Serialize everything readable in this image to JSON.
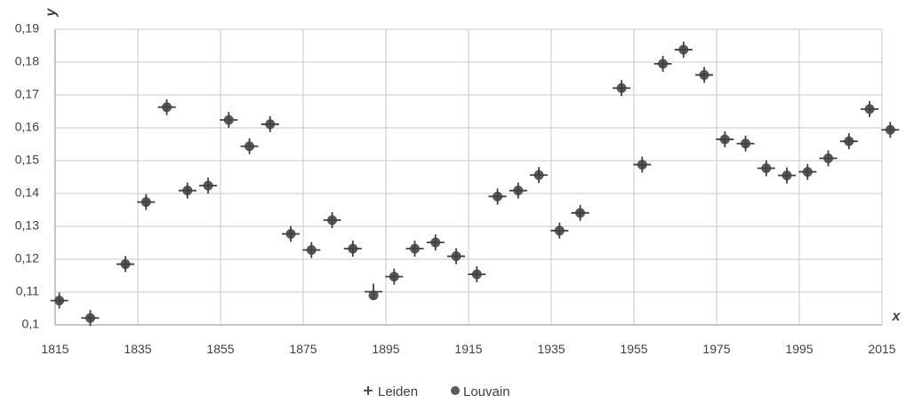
{
  "chart_data": {
    "type": "scatter",
    "xlabel": "x",
    "ylabel": "y",
    "xlim": [
      1815,
      2015
    ],
    "ylim": [
      0.1,
      0.19
    ],
    "x_ticks": [
      "1815",
      "1835",
      "1855",
      "1875",
      "1895",
      "1915",
      "1935",
      "1955",
      "1975",
      "1995",
      "2015"
    ],
    "y_ticks": [
      "0,1",
      "0,11",
      "0,12",
      "0,13",
      "0,14",
      "0,15",
      "0,16",
      "0,17",
      "0,18",
      "0,19"
    ],
    "grid": true,
    "legend_position": "bottom",
    "series": [
      {
        "name": "Leiden",
        "marker": "plus",
        "color": "#404040",
        "points": [
          [
            1816,
            0.1074
          ],
          [
            1823.5,
            0.1021
          ],
          [
            1832,
            0.1185
          ],
          [
            1837,
            0.1374
          ],
          [
            1842,
            0.1663
          ],
          [
            1847,
            0.1409
          ],
          [
            1852,
            0.1424
          ],
          [
            1857,
            0.1624
          ],
          [
            1862,
            0.1544
          ],
          [
            1867,
            0.1611
          ],
          [
            1872,
            0.1277
          ],
          [
            1877,
            0.1228
          ],
          [
            1882,
            0.1319
          ],
          [
            1887,
            0.1232
          ],
          [
            1892,
            0.1101
          ],
          [
            1897,
            0.1147
          ],
          [
            1902,
            0.1232
          ],
          [
            1907,
            0.1251
          ],
          [
            1912,
            0.1209
          ],
          [
            1917,
            0.1154
          ],
          [
            1922,
            0.1391
          ],
          [
            1927,
            0.1409
          ],
          [
            1932,
            0.1456
          ],
          [
            1937,
            0.1287
          ],
          [
            1942,
            0.1341
          ],
          [
            1952,
            0.1721
          ],
          [
            1957,
            0.1488
          ],
          [
            1962,
            0.1795
          ],
          [
            1967,
            0.1838
          ],
          [
            1972,
            0.1761
          ],
          [
            1977,
            0.1565
          ],
          [
            1982,
            0.1552
          ],
          [
            1987,
            0.1477
          ],
          [
            1992,
            0.1455
          ],
          [
            1997,
            0.1466
          ],
          [
            2002,
            0.1507
          ],
          [
            2007,
            0.1559
          ],
          [
            2012,
            0.1657
          ],
          [
            2017,
            0.1594
          ]
        ]
      },
      {
        "name": "Louvain",
        "marker": "circle",
        "color": "#595959",
        "points": [
          [
            1816,
            0.1074
          ],
          [
            1823.5,
            0.1021
          ],
          [
            1832,
            0.1185
          ],
          [
            1837,
            0.1374
          ],
          [
            1842,
            0.1663
          ],
          [
            1847,
            0.1409
          ],
          [
            1852,
            0.1424
          ],
          [
            1857,
            0.1624
          ],
          [
            1862,
            0.1544
          ],
          [
            1867,
            0.1611
          ],
          [
            1872,
            0.1277
          ],
          [
            1877,
            0.1228
          ],
          [
            1882,
            0.1319
          ],
          [
            1887,
            0.1232
          ],
          [
            1892,
            0.109
          ],
          [
            1897,
            0.1147
          ],
          [
            1902,
            0.1232
          ],
          [
            1907,
            0.1251
          ],
          [
            1912,
            0.1209
          ],
          [
            1917,
            0.1154
          ],
          [
            1922,
            0.1391
          ],
          [
            1927,
            0.1409
          ],
          [
            1932,
            0.1456
          ],
          [
            1937,
            0.1287
          ],
          [
            1942,
            0.1341
          ],
          [
            1952,
            0.1721
          ],
          [
            1957,
            0.1488
          ],
          [
            1962,
            0.1795
          ],
          [
            1967,
            0.1838
          ],
          [
            1972,
            0.1761
          ],
          [
            1977,
            0.1565
          ],
          [
            1982,
            0.1552
          ],
          [
            1987,
            0.1477
          ],
          [
            1992,
            0.1455
          ],
          [
            1997,
            0.1466
          ],
          [
            2002,
            0.1507
          ],
          [
            2007,
            0.1559
          ],
          [
            2012,
            0.1657
          ],
          [
            2017,
            0.1594
          ]
        ]
      }
    ]
  }
}
